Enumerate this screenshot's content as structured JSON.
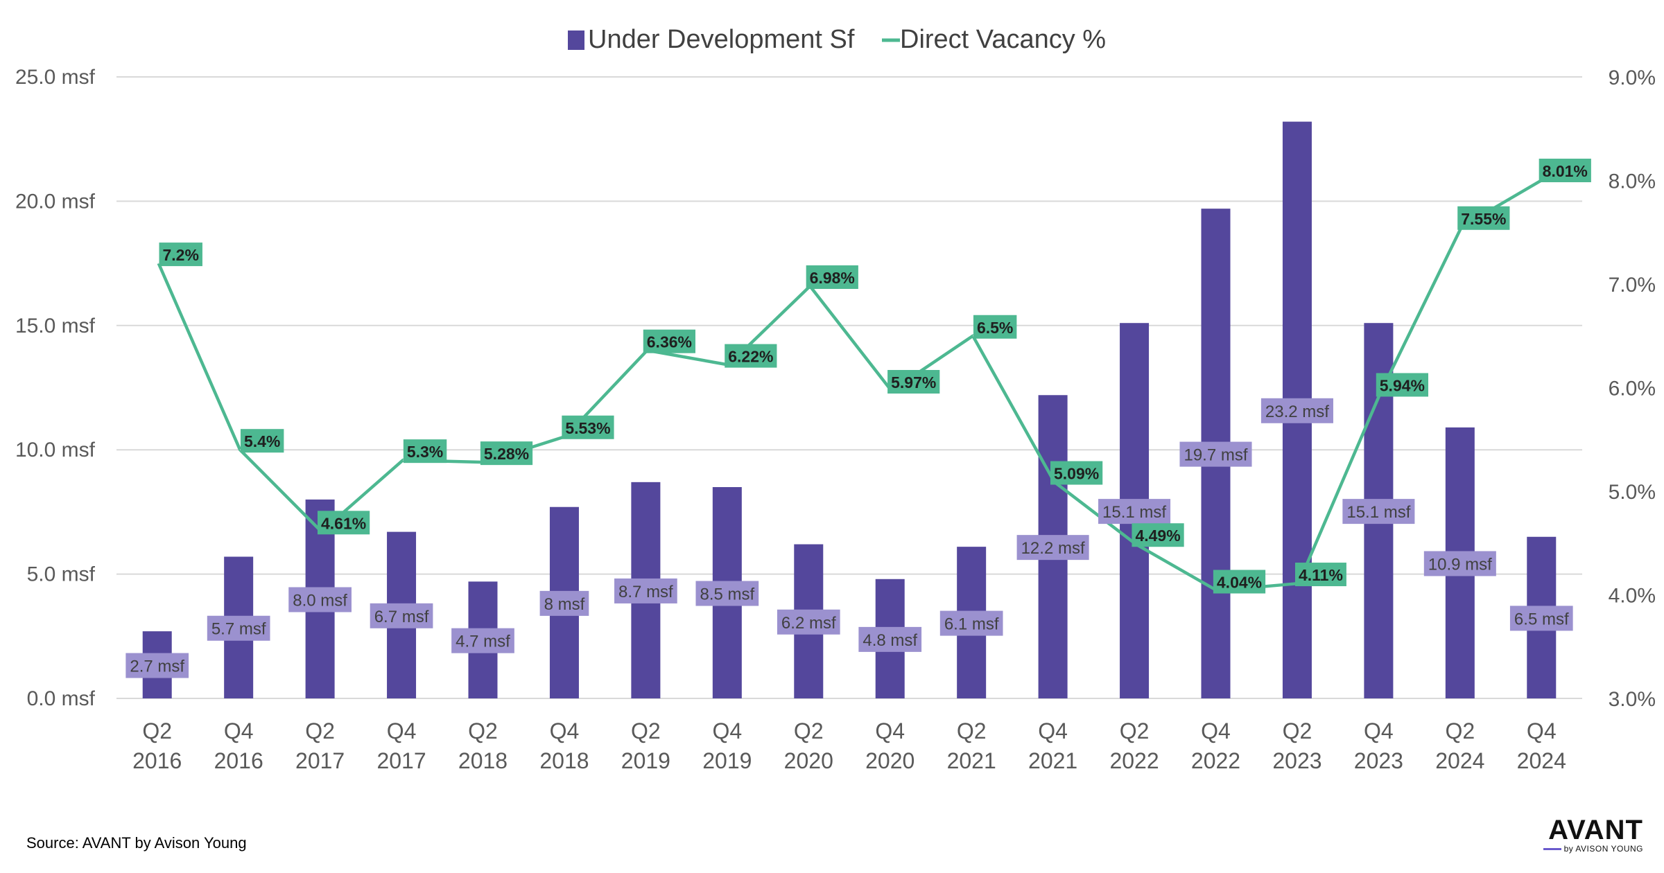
{
  "chart_data": {
    "type": "bar+line",
    "categories": [
      [
        "Q2",
        "2016"
      ],
      [
        "Q4",
        "2016"
      ],
      [
        "Q2",
        "2017"
      ],
      [
        "Q4",
        "2017"
      ],
      [
        "Q2",
        "2018"
      ],
      [
        "Q4",
        "2018"
      ],
      [
        "Q2",
        "2019"
      ],
      [
        "Q4",
        "2019"
      ],
      [
        "Q2",
        "2020"
      ],
      [
        "Q4",
        "2020"
      ],
      [
        "Q2",
        "2021"
      ],
      [
        "Q4",
        "2021"
      ],
      [
        "Q2",
        "2022"
      ],
      [
        "Q4",
        "2022"
      ],
      [
        "Q2",
        "2023"
      ],
      [
        "Q4",
        "2023"
      ],
      [
        "Q2",
        "2024"
      ],
      [
        "Q4",
        "2024"
      ]
    ],
    "series": [
      {
        "name": "Under Development Sf",
        "type": "bar",
        "axis": "left",
        "values": [
          2.7,
          5.7,
          8.0,
          6.7,
          4.7,
          7.7,
          8.7,
          8.5,
          6.2,
          4.8,
          6.1,
          12.2,
          15.1,
          19.7,
          23.2,
          15.1,
          10.9,
          6.5
        ],
        "labels": [
          "2.7 msf",
          "5.7 msf",
          "8.0 msf",
          "6.7 msf",
          "4.7 msf",
          "8 msf",
          "8.7 msf",
          "8.5 msf",
          "6.2 msf",
          "4.8 msf",
          "6.1 msf",
          "12.2 msf",
          "15.1 msf",
          "19.7 msf",
          "23.2 msf",
          "15.1 msf",
          "10.9 msf",
          "6.5 msf"
        ]
      },
      {
        "name": "Direct Vacancy %",
        "type": "line",
        "axis": "right",
        "values": [
          7.2,
          5.4,
          4.61,
          5.3,
          5.28,
          5.53,
          6.36,
          6.22,
          6.98,
          5.97,
          6.5,
          5.09,
          4.49,
          4.04,
          4.11,
          5.94,
          7.55,
          8.01
        ],
        "labels": [
          "7.2%",
          "5.4%",
          "4.61%",
          "5.3%",
          "5.28%",
          "5.53%",
          "6.36%",
          "6.22%",
          "6.98%",
          "5.97%",
          "6.5%",
          "5.09%",
          "4.49%",
          "4.04%",
          "4.11%",
          "5.94%",
          "7.55%",
          "8.01%"
        ]
      }
    ],
    "y_left": {
      "min": 0,
      "max": 25,
      "ticks": [
        "0.0 msf",
        "5.0 msf",
        "10.0 msf",
        "15.0 msf",
        "20.0 msf",
        "25.0 msf"
      ]
    },
    "y_right": {
      "min": 3,
      "max": 9,
      "ticks": [
        "3.0%",
        "4.0%",
        "5.0%",
        "6.0%",
        "7.0%",
        "8.0%",
        "9.0%"
      ]
    },
    "grid": true,
    "legend_position": "top-center",
    "title": ""
  },
  "colors": {
    "bar": "#54479c",
    "bar_label_bg": "#9b91cf",
    "line": "#4db891",
    "line_label_bg": "#4db891",
    "grid": "#d9d9d9"
  },
  "source_text": "Source: AVANT by Avison Young",
  "logo": {
    "main": "AVANT",
    "sub": "by AVISON YOUNG"
  }
}
